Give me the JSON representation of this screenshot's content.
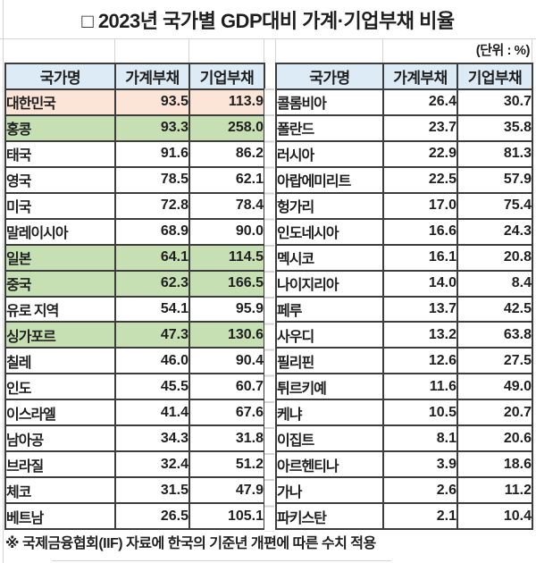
{
  "title": "□ 2023년 국가별 GDP대비 가계·기업부채 비율",
  "unit_label": "(단위 : %)",
  "columns": [
    "국가명",
    "가계부채",
    "기업부채"
  ],
  "left_table": {
    "rows": [
      {
        "country": "대한민국",
        "household": "93.5",
        "corporate": "113.9",
        "highlight": "pink"
      },
      {
        "country": "홍콩",
        "household": "93.3",
        "corporate": "258.0",
        "highlight": "green"
      },
      {
        "country": "태국",
        "household": "91.6",
        "corporate": "86.2",
        "highlight": ""
      },
      {
        "country": "영국",
        "household": "78.5",
        "corporate": "62.1",
        "highlight": ""
      },
      {
        "country": "미국",
        "household": "72.8",
        "corporate": "78.4",
        "highlight": ""
      },
      {
        "country": "말레이시아",
        "household": "68.9",
        "corporate": "90.0",
        "highlight": ""
      },
      {
        "country": "일본",
        "household": "64.1",
        "corporate": "114.5",
        "highlight": "green"
      },
      {
        "country": "중국",
        "household": "62.3",
        "corporate": "166.5",
        "highlight": "green"
      },
      {
        "country": "유로 지역",
        "household": "54.1",
        "corporate": "95.9",
        "highlight": ""
      },
      {
        "country": "싱가포르",
        "household": "47.3",
        "corporate": "130.6",
        "highlight": "green"
      },
      {
        "country": "칠레",
        "household": "46.0",
        "corporate": "90.4",
        "highlight": ""
      },
      {
        "country": "인도",
        "household": "45.5",
        "corporate": "60.7",
        "highlight": ""
      },
      {
        "country": "이스라엘",
        "household": "41.4",
        "corporate": "67.6",
        "highlight": ""
      },
      {
        "country": "남아공",
        "household": "34.3",
        "corporate": "31.8",
        "highlight": ""
      },
      {
        "country": "브라질",
        "household": "32.4",
        "corporate": "51.2",
        "highlight": ""
      },
      {
        "country": "체코",
        "household": "31.5",
        "corporate": "47.9",
        "highlight": ""
      },
      {
        "country": "베트남",
        "household": "26.5",
        "corporate": "105.1",
        "highlight": ""
      }
    ]
  },
  "right_table": {
    "rows": [
      {
        "country": "콜롬비아",
        "household": "26.4",
        "corporate": "30.7",
        "highlight": ""
      },
      {
        "country": "폴란드",
        "household": "23.7",
        "corporate": "35.8",
        "highlight": ""
      },
      {
        "country": "러시아",
        "household": "22.9",
        "corporate": "81.3",
        "highlight": ""
      },
      {
        "country": "아랍에미리트",
        "household": "22.5",
        "corporate": "57.9",
        "highlight": ""
      },
      {
        "country": "헝가리",
        "household": "17.0",
        "corporate": "75.4",
        "highlight": ""
      },
      {
        "country": "인도네시아",
        "household": "16.6",
        "corporate": "24.3",
        "highlight": ""
      },
      {
        "country": "멕시코",
        "household": "16.1",
        "corporate": "20.8",
        "highlight": ""
      },
      {
        "country": "나이지리아",
        "household": "14.0",
        "corporate": "8.4",
        "highlight": ""
      },
      {
        "country": "페루",
        "household": "13.7",
        "corporate": "42.5",
        "highlight": ""
      },
      {
        "country": "사우디",
        "household": "13.2",
        "corporate": "63.8",
        "highlight": ""
      },
      {
        "country": "필리핀",
        "household": "12.6",
        "corporate": "27.5",
        "highlight": ""
      },
      {
        "country": "튀르키예",
        "household": "11.6",
        "corporate": "49.0",
        "highlight": ""
      },
      {
        "country": "케냐",
        "household": "10.5",
        "corporate": "20.7",
        "highlight": ""
      },
      {
        "country": "이집트",
        "household": "8.1",
        "corporate": "20.6",
        "highlight": ""
      },
      {
        "country": "아르헨티나",
        "household": "3.9",
        "corporate": "18.6",
        "highlight": ""
      },
      {
        "country": "가나",
        "household": "2.6",
        "corporate": "11.2",
        "highlight": ""
      },
      {
        "country": "파키스탄",
        "household": "2.1",
        "corporate": "10.4",
        "highlight": ""
      }
    ]
  },
  "footnote": "※ 국제금융협회(IIF) 자료에 한국의 기준년 개편에 따른 수치 적용",
  "colors": {
    "header_bg": "#DDEBF7",
    "highlight_pink": "#FCE4D6",
    "highlight_green": "#C6E0B4",
    "border": "#3D3D3D",
    "gridline": "#D4D4D4",
    "text": "#1F1F1F"
  }
}
